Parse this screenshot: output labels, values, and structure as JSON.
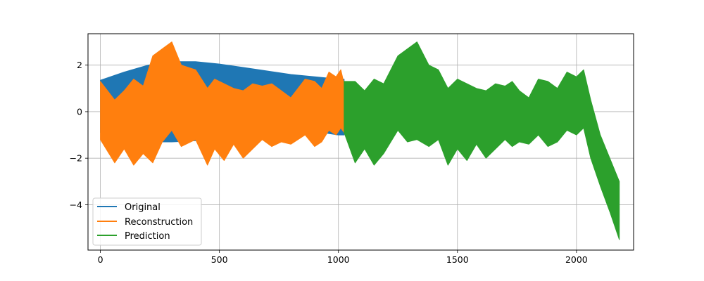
{
  "chart_data": {
    "type": "line",
    "title": "",
    "xlabel": "",
    "ylabel": "",
    "xlim": [
      -52,
      2240
    ],
    "ylim": [
      -5.95,
      3.35
    ],
    "grid": true,
    "legend_position": "lower-left",
    "x_ticks": [
      0,
      500,
      1000,
      1500,
      2000
    ],
    "x_tick_labels": [
      "0",
      "500",
      "1000",
      "1500",
      "2000"
    ],
    "y_ticks": [
      -4,
      -2,
      0,
      2
    ],
    "y_tick_labels": [
      "−4",
      "−2",
      "0",
      "2"
    ],
    "series": [
      {
        "name": "Original",
        "color": "#1f77b4",
        "band": {
          "x": [
            0,
            100,
            200,
            300,
            400,
            500,
            600,
            700,
            800,
            900,
            1000,
            1024
          ],
          "upper": [
            1.35,
            1.7,
            2.0,
            2.15,
            2.15,
            2.05,
            1.9,
            1.75,
            1.6,
            1.5,
            1.4,
            1.4
          ],
          "lower": [
            -0.9,
            -1.2,
            -1.3,
            -1.3,
            -1.25,
            -1.2,
            -1.15,
            -1.05,
            -0.95,
            -0.85,
            -1.0,
            -1.0
          ]
        }
      },
      {
        "name": "Reconstruction",
        "color": "#ff7f0e",
        "band": {
          "x": [
            0,
            60,
            100,
            140,
            180,
            220,
            260,
            300,
            340,
            400,
            450,
            480,
            520,
            560,
            600,
            640,
            680,
            720,
            760,
            800,
            860,
            900,
            930,
            960,
            990,
            1010,
            1024
          ],
          "upper": [
            1.3,
            0.5,
            0.9,
            1.4,
            1.1,
            2.4,
            2.7,
            3.0,
            2.0,
            1.8,
            1.0,
            1.4,
            1.2,
            1.0,
            0.9,
            1.2,
            1.1,
            1.2,
            0.9,
            0.6,
            1.4,
            1.3,
            1.0,
            1.7,
            1.5,
            1.8,
            1.2
          ],
          "lower": [
            -1.2,
            -2.2,
            -1.6,
            -2.3,
            -1.8,
            -2.2,
            -1.3,
            -0.8,
            -1.5,
            -1.2,
            -2.3,
            -1.6,
            -2.1,
            -1.4,
            -2.0,
            -1.6,
            -1.2,
            -1.5,
            -1.3,
            -1.4,
            -1.0,
            -1.5,
            -1.3,
            -0.8,
            -1.0,
            -0.7,
            -0.9
          ]
        }
      },
      {
        "name": "Prediction",
        "color": "#2ca02c",
        "band": {
          "x": [
            1024,
            1070,
            1110,
            1150,
            1190,
            1250,
            1290,
            1330,
            1380,
            1420,
            1460,
            1500,
            1540,
            1580,
            1620,
            1660,
            1700,
            1730,
            1760,
            1800,
            1840,
            1880,
            1920,
            1960,
            2000,
            2030,
            2060,
            2100,
            2140,
            2180
          ],
          "upper": [
            1.3,
            1.3,
            0.9,
            1.4,
            1.2,
            2.4,
            2.7,
            3.0,
            2.0,
            1.8,
            1.0,
            1.4,
            1.2,
            1.0,
            0.9,
            1.2,
            1.1,
            1.3,
            0.9,
            0.6,
            1.4,
            1.3,
            1.0,
            1.7,
            1.5,
            1.8,
            0.5,
            -1.0,
            -2.0,
            -3.0
          ],
          "lower": [
            -0.9,
            -2.2,
            -1.6,
            -2.3,
            -1.8,
            -0.8,
            -1.3,
            -1.2,
            -1.5,
            -1.2,
            -2.3,
            -1.6,
            -2.1,
            -1.4,
            -2.0,
            -1.6,
            -1.2,
            -1.5,
            -1.3,
            -1.4,
            -1.0,
            -1.5,
            -1.3,
            -0.8,
            -1.0,
            -0.7,
            -2.0,
            -3.2,
            -4.3,
            -5.5
          ]
        }
      }
    ]
  }
}
